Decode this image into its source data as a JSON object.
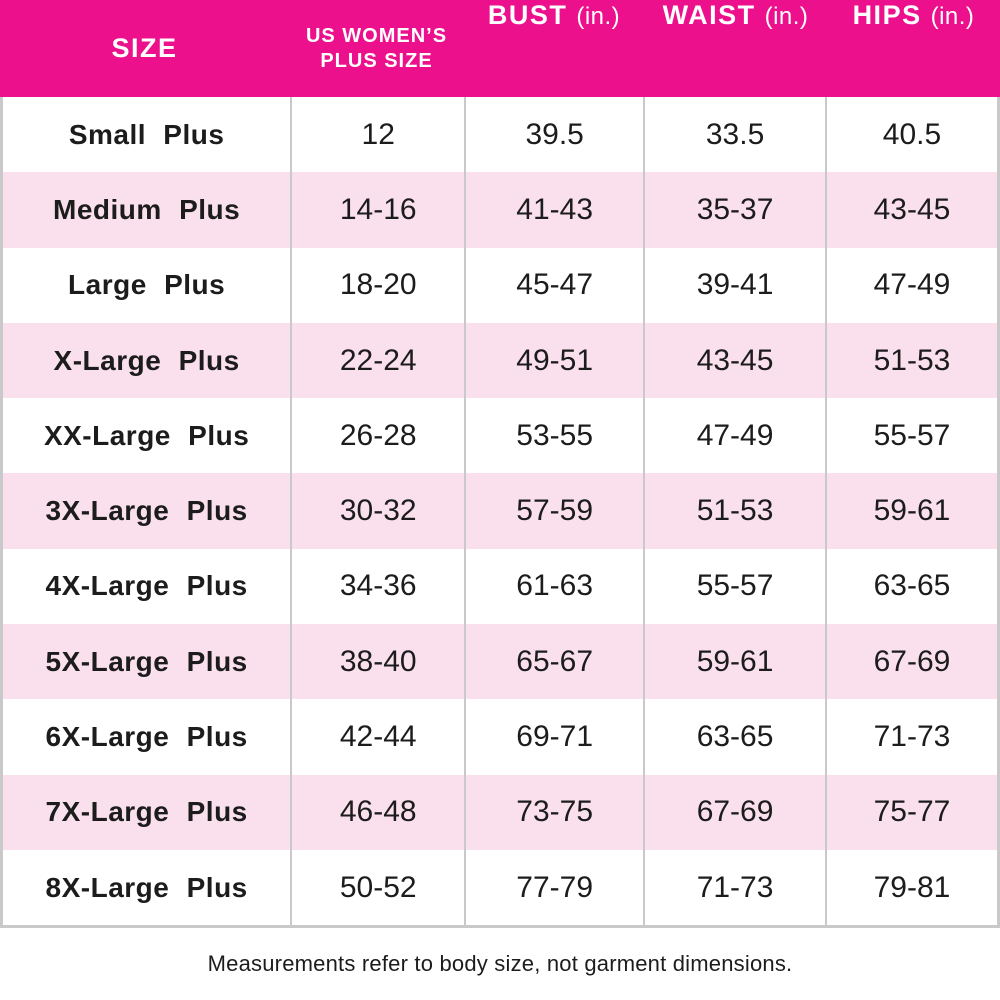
{
  "chart_data": {
    "type": "table",
    "header": {
      "size_label": "SIZE",
      "us_plus_line1": "US WOMEN’S",
      "us_plus_line2": "PLUS SIZE",
      "bust_label": "BUST",
      "bust_unit": "(in.)",
      "waist_label": "WAIST",
      "waist_unit": "(in.)",
      "hips_label": "HIPS",
      "hips_unit": "(in.)"
    },
    "columns": [
      "SIZE",
      "US WOMEN’S PLUS SIZE",
      "BUST (in.)",
      "WAIST (in.)",
      "HIPS (in.)"
    ],
    "rows": [
      {
        "size": "Small Plus",
        "us_size": "12",
        "bust": "39.5",
        "waist": "33.5",
        "hips": "40.5"
      },
      {
        "size": "Medium Plus",
        "us_size": "14-16",
        "bust": "41-43",
        "waist": "35-37",
        "hips": "43-45"
      },
      {
        "size": "Large Plus",
        "us_size": "18-20",
        "bust": "45-47",
        "waist": "39-41",
        "hips": "47-49"
      },
      {
        "size": "X-Large Plus",
        "us_size": "22-24",
        "bust": "49-51",
        "waist": "43-45",
        "hips": "51-53"
      },
      {
        "size": "XX-Large Plus",
        "us_size": "26-28",
        "bust": "53-55",
        "waist": "47-49",
        "hips": "55-57"
      },
      {
        "size": "3X-Large Plus",
        "us_size": "30-32",
        "bust": "57-59",
        "waist": "51-53",
        "hips": "59-61"
      },
      {
        "size": "4X-Large Plus",
        "us_size": "34-36",
        "bust": "61-63",
        "waist": "55-57",
        "hips": "63-65"
      },
      {
        "size": "5X-Large Plus",
        "us_size": "38-40",
        "bust": "65-67",
        "waist": "59-61",
        "hips": "67-69"
      },
      {
        "size": "6X-Large Plus",
        "us_size": "42-44",
        "bust": "69-71",
        "waist": "63-65",
        "hips": "71-73"
      },
      {
        "size": "7X-Large Plus",
        "us_size": "46-48",
        "bust": "73-75",
        "waist": "67-69",
        "hips": "75-77"
      },
      {
        "size": "8X-Large Plus",
        "us_size": "50-52",
        "bust": "77-79",
        "waist": "71-73",
        "hips": "79-81"
      }
    ],
    "footnote": "Measurements refer to body size, not garment dimensions."
  },
  "colors": {
    "header_bg": "#EC108C",
    "header_text": "#FFFFFF",
    "row_bg": "#FFFFFF",
    "row_alt_bg": "#FAE0EC",
    "border": "#C9C9C9",
    "text": "#1C1C1C"
  }
}
